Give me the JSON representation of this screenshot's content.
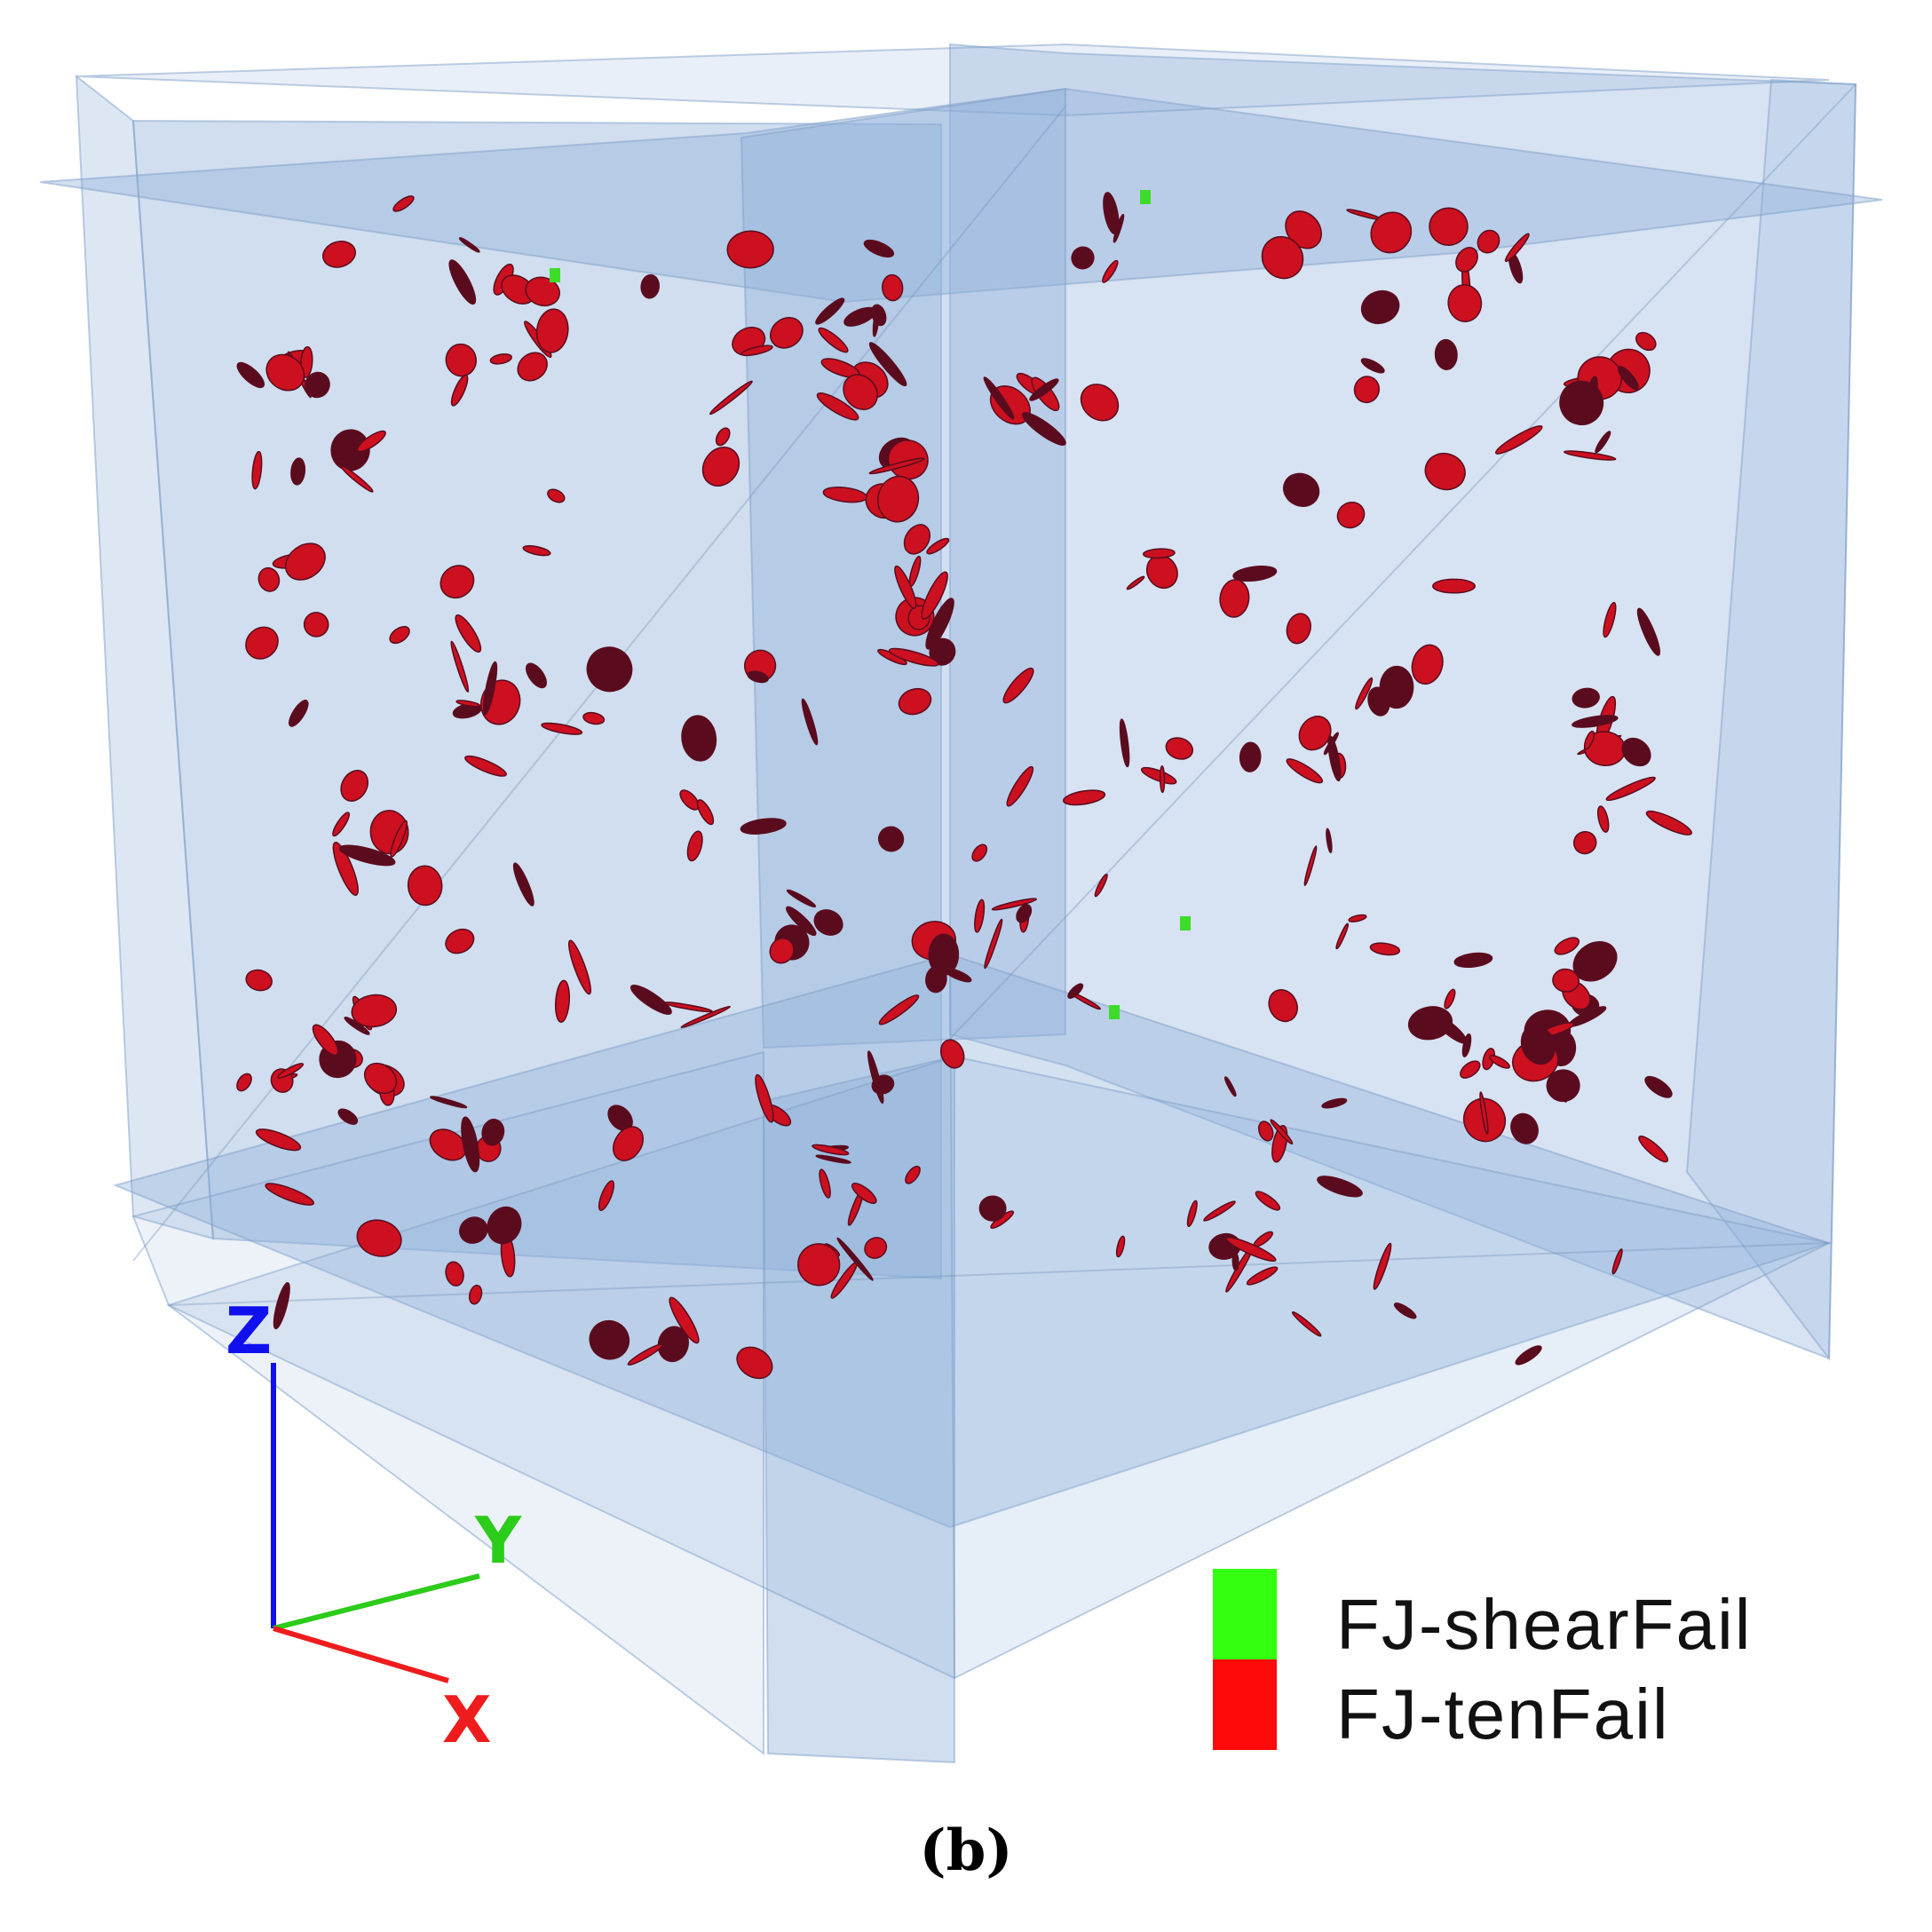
{
  "figure": {
    "caption": "(b)",
    "colors": {
      "plane_fill": "#8fb0da",
      "plane_edge": "#7f9fc8",
      "crack_red": "#cc1020",
      "crack_dark": "#5a0c1e",
      "crack_green": "#3ddc2a"
    }
  },
  "axes": {
    "z": {
      "label": "Z",
      "color": "#1010ee"
    },
    "y": {
      "label": "Y",
      "color": "#2ccc1a"
    },
    "x": {
      "label": "X",
      "color": "#ee1c1c"
    }
  },
  "legend": {
    "items": [
      {
        "label": "FJ-shearFail",
        "color": "#33ff11"
      },
      {
        "label": "FJ-tenFail",
        "color": "#ff0a0a"
      }
    ]
  }
}
